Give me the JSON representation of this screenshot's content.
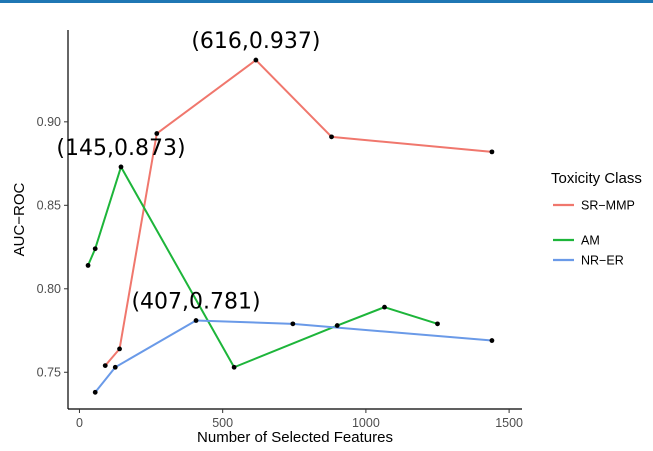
{
  "colors": {
    "top_bar": "#1f77b4"
  },
  "chart_data": {
    "type": "line",
    "xlabel": "Number of Selected Features",
    "ylabel": "AUC−ROC",
    "xlim": [
      -40,
      1545
    ],
    "ylim": [
      0.728,
      0.955
    ],
    "xticks": [
      0,
      500,
      1000,
      1500
    ],
    "xtick_labels": [
      "0",
      "500",
      "1000",
      "1500"
    ],
    "yticks": [
      0.75,
      0.8,
      0.85,
      0.9
    ],
    "ytick_labels": [
      "0.75",
      "0.80",
      "0.85",
      "0.90"
    ],
    "grid": false,
    "legend": {
      "title": "Toxicity Class",
      "placement": "right"
    },
    "series": [
      {
        "name": "SR−MMP",
        "color": "#f0776d",
        "x": [
          90,
          140,
          270,
          616,
          880,
          1440
        ],
        "y": [
          0.754,
          0.764,
          0.893,
          0.937,
          0.891,
          0.882
        ]
      },
      {
        "name": "AM",
        "color": "#1db53a",
        "x": [
          30,
          55,
          145,
          540,
          900,
          1065,
          1250
        ],
        "y": [
          0.814,
          0.824,
          0.873,
          0.753,
          0.778,
          0.789,
          0.779
        ]
      },
      {
        "name": "NR−ER",
        "color": "#6a9ae8",
        "x": [
          55,
          125,
          407,
          745,
          1440
        ],
        "y": [
          0.738,
          0.753,
          0.781,
          0.779,
          0.769
        ]
      }
    ],
    "annotations": [
      {
        "text": "(616,0.937)",
        "x": 616,
        "y": 0.937
      },
      {
        "text": "(145,0.873)",
        "x": 145,
        "y": 0.873
      },
      {
        "text": "(407,0.781)",
        "x": 407,
        "y": 0.781
      }
    ]
  }
}
